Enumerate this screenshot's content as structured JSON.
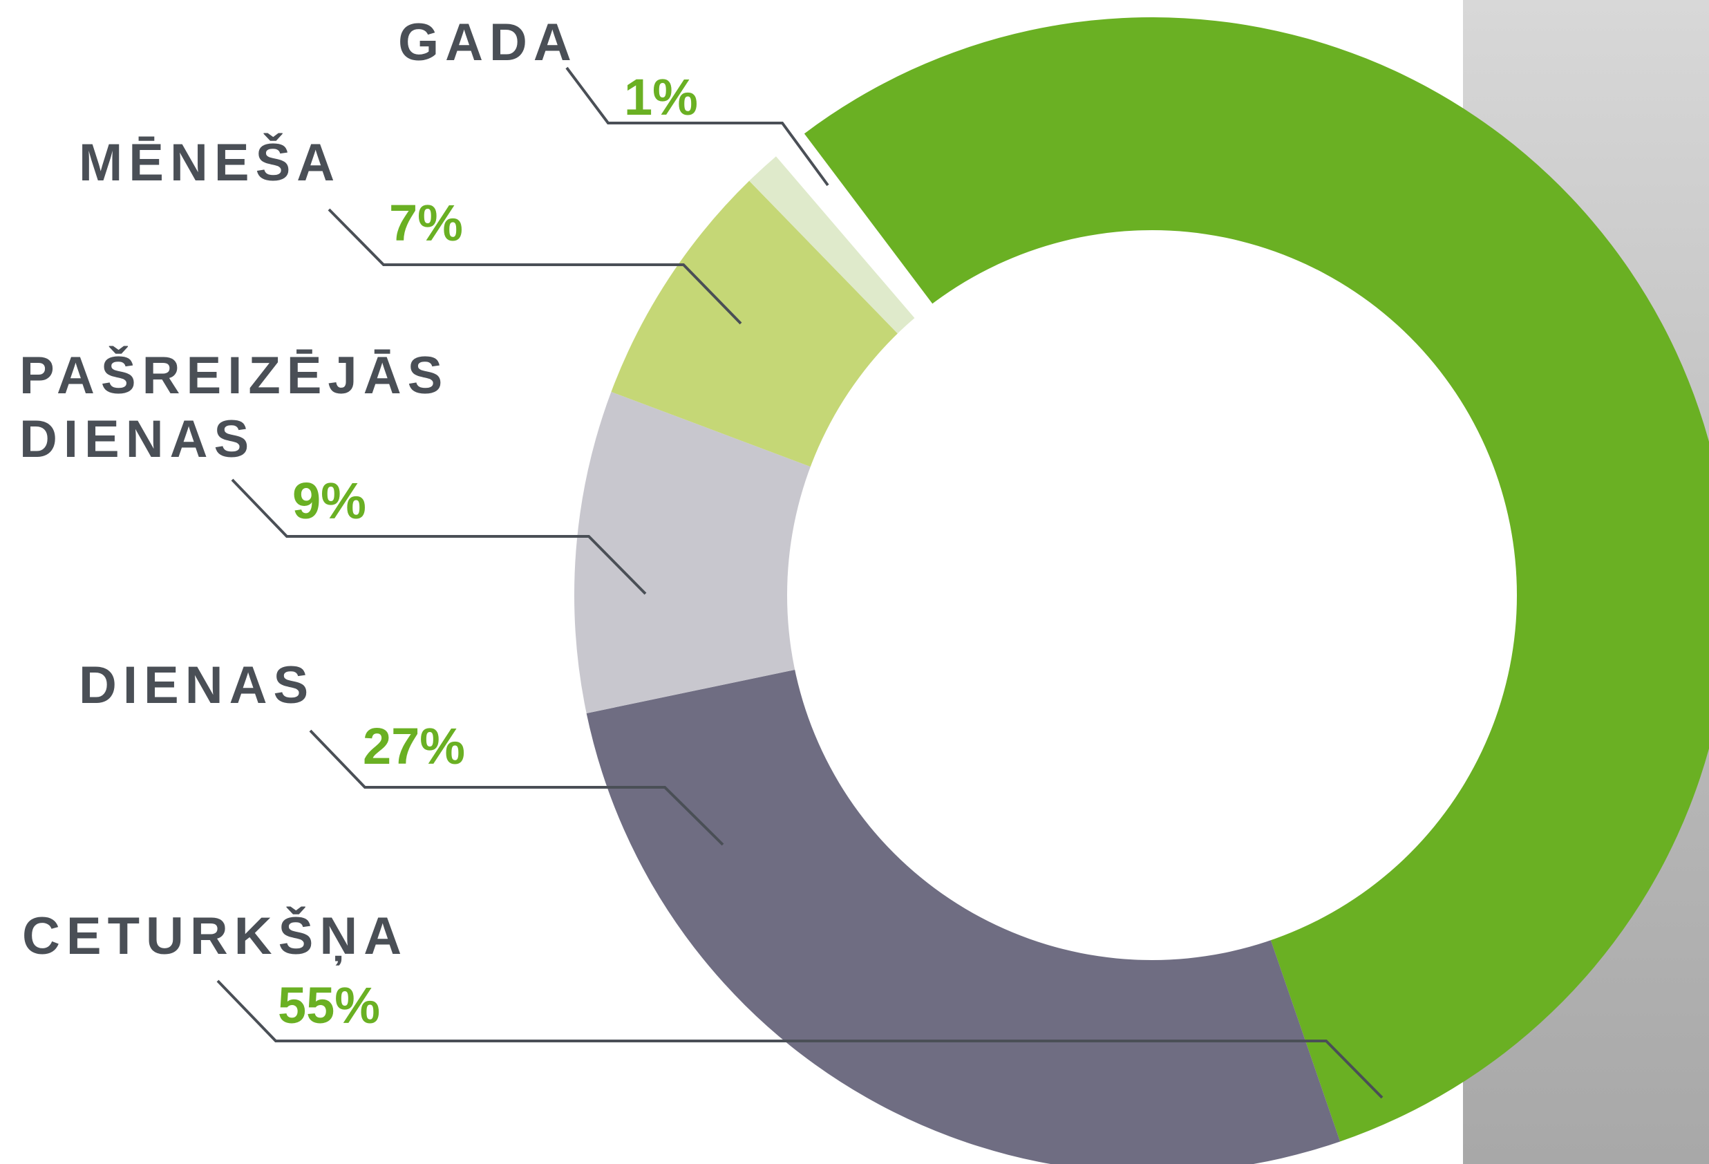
{
  "chart_data": {
    "type": "donut",
    "categories": [
      "GADA",
      "MĒNEŠA",
      "PAŠREIZĒJĀS DIENAS",
      "DIENAS",
      "CETURKŠŅA"
    ],
    "values": [
      1,
      7,
      9,
      27,
      55
    ],
    "value_labels": [
      "1%",
      "7%",
      "9%",
      "27%",
      "55%"
    ],
    "colors": [
      "#dfeacb",
      "#c5d776",
      "#c8c7ce",
      "#6f6d82",
      "#6ab023"
    ]
  }
}
